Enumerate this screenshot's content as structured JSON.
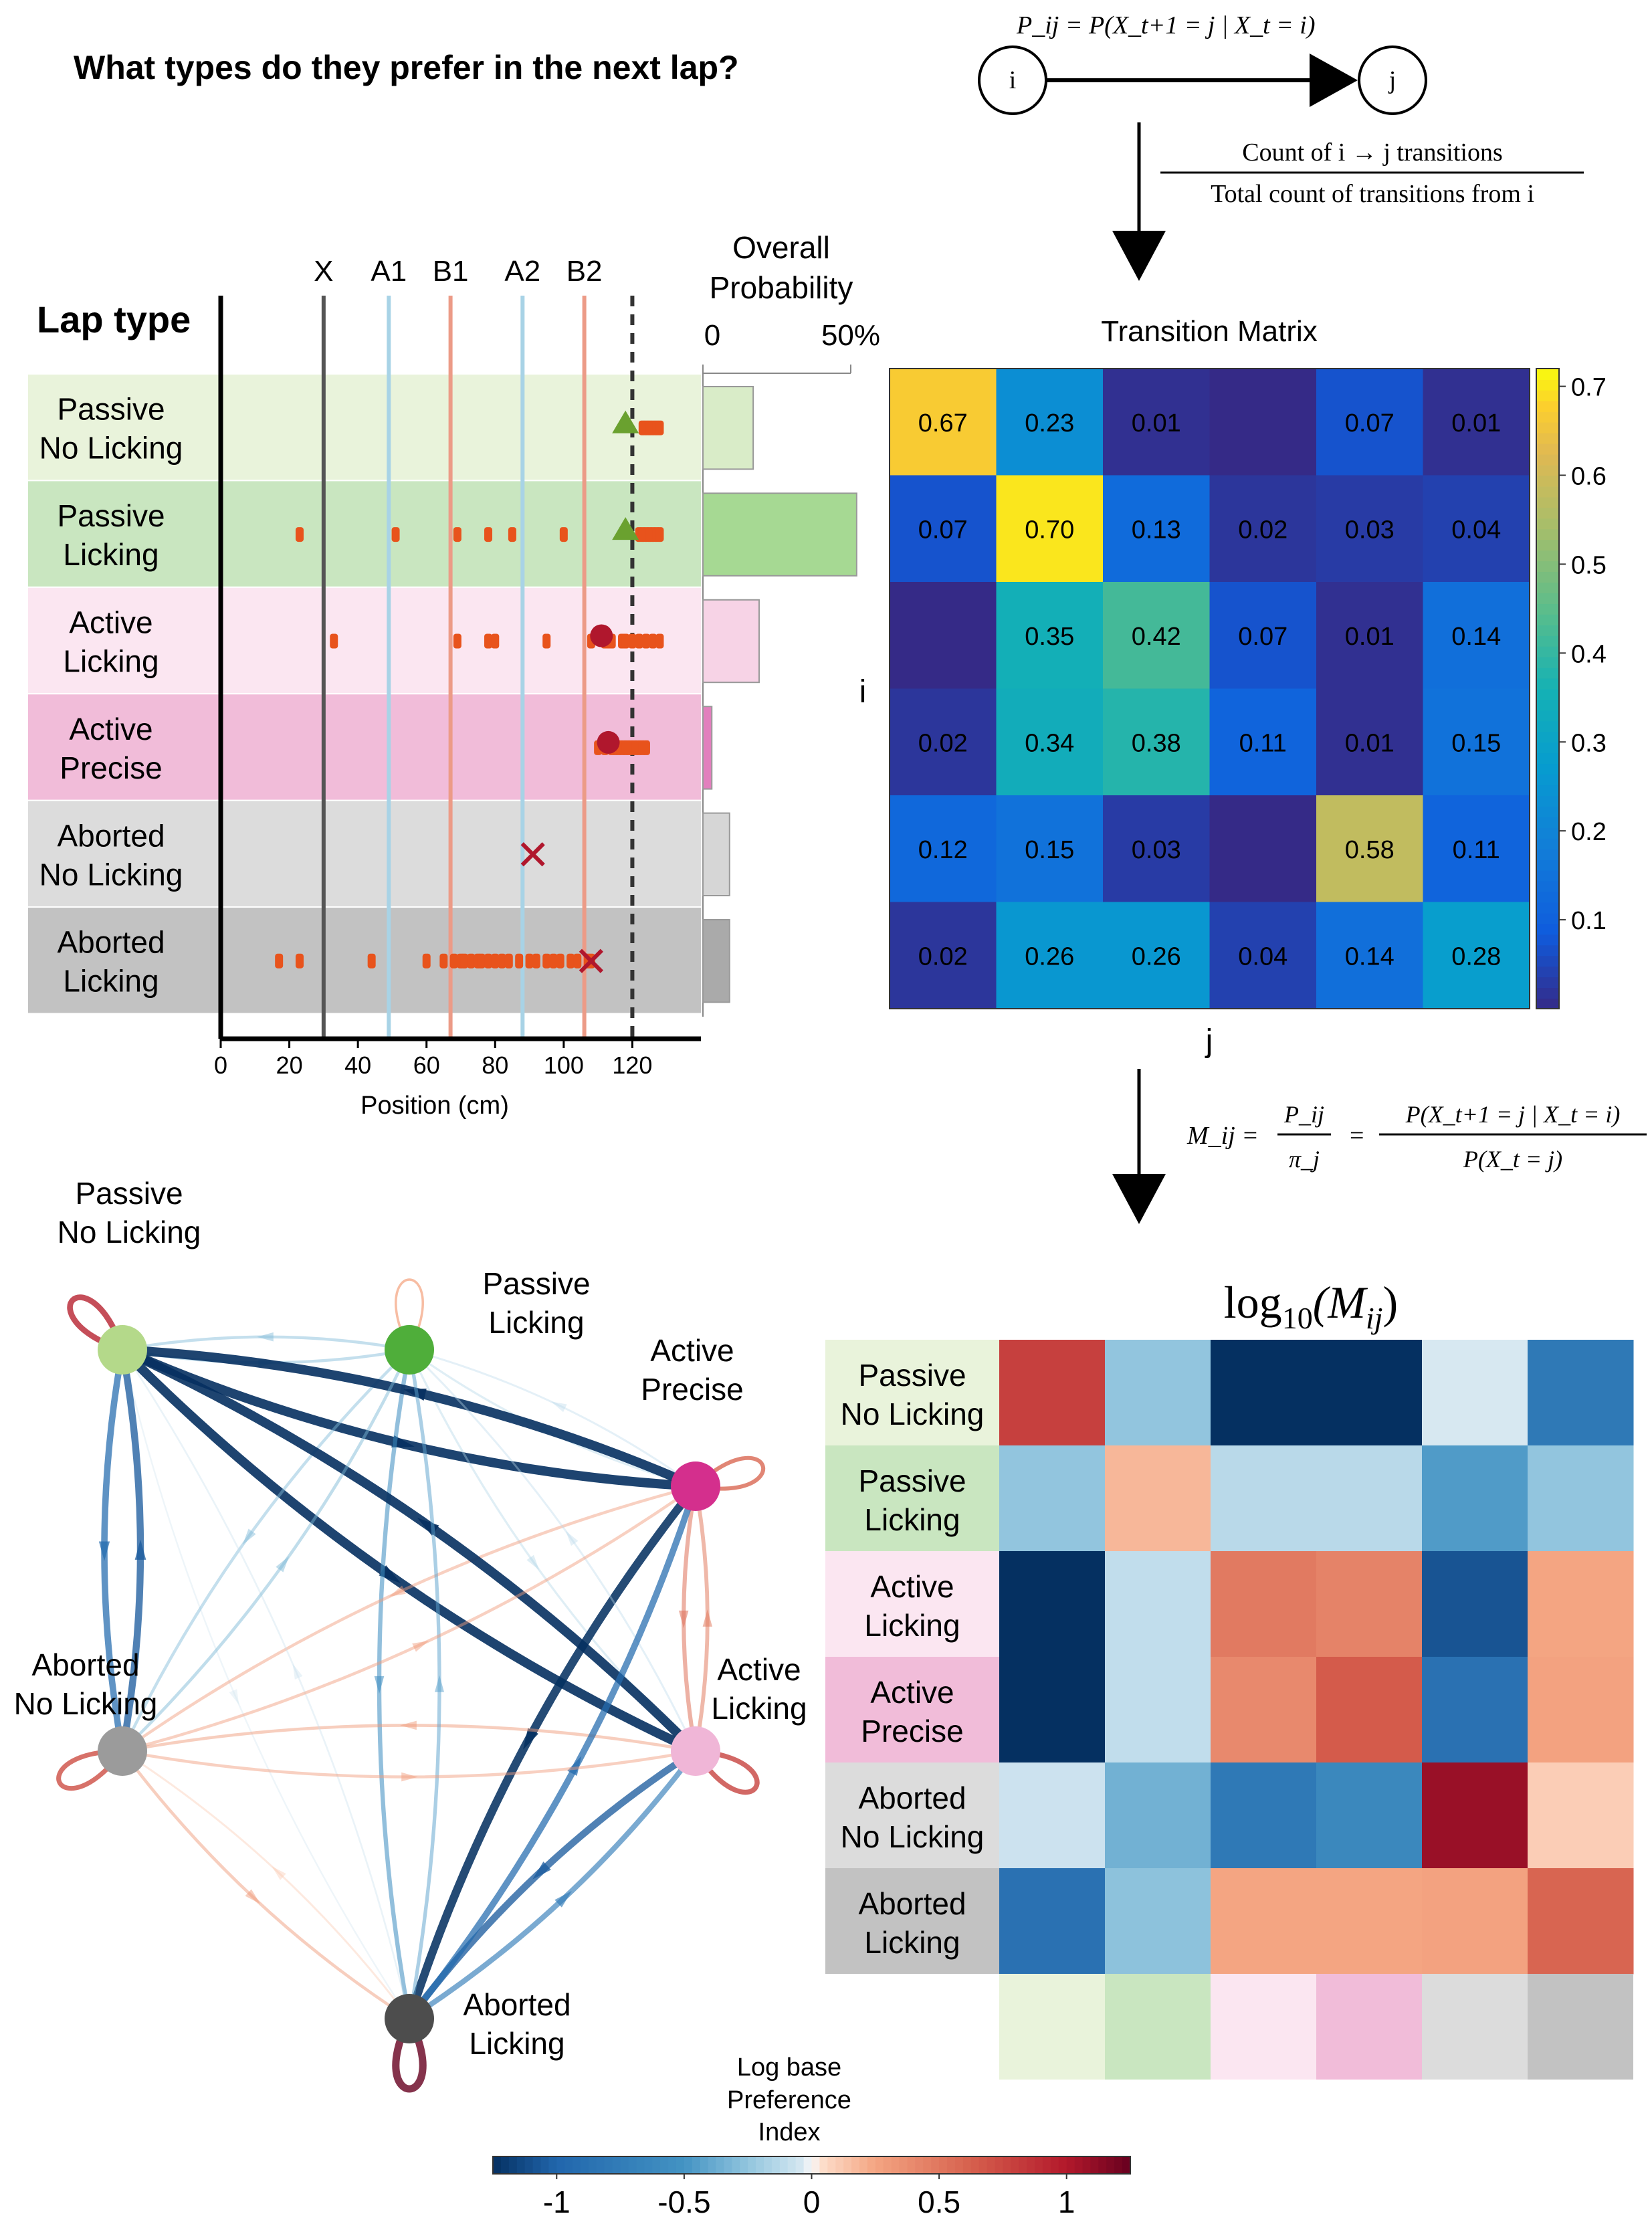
{
  "title": "What types do they prefer in the next lap?",
  "lap_types": [
    {
      "line1": "Passive",
      "line2": "No Licking",
      "color": "#e9f3db",
      "bar": "#d9ecc8",
      "mark": "triangle"
    },
    {
      "line1": "Passive",
      "line2": "Licking",
      "color": "#c9e6c0",
      "bar": "#a6d993",
      "mark": "triangle"
    },
    {
      "line1": "Active",
      "line2": "Licking",
      "color": "#fbe6f1",
      "bar": "#f7d3e6",
      "mark": "circle"
    },
    {
      "line1": "Active",
      "line2": "Precise",
      "color": "#f1bcd9",
      "bar": "#e27fbd",
      "mark": "circle"
    },
    {
      "line1": "Aborted",
      "line2": "No Licking",
      "color": "#dcdcdc",
      "bar": "#d6d6d6",
      "mark": "cross"
    },
    {
      "line1": "Aborted",
      "line2": "Licking",
      "color": "#c2c2c2",
      "bar": "#aaaaaa",
      "mark": "cross"
    }
  ],
  "transition": {
    "formula": "P_ij = P(X_t+1 = j | X_t = i)",
    "node_i": "i",
    "node_j": "j",
    "frac_num": "Count of i → j transitions",
    "frac_den": "Total count of transitions from i"
  },
  "m_formula": {
    "lhs": "M_ij =",
    "frac1_num": "P_ij",
    "frac1_den": "π_j",
    "eq": "=",
    "frac2_num": "P(X_t+1 = j | X_t = i)",
    "frac2_den": "P(X_t = j)"
  },
  "chart_data": [
    {
      "type": "scatter",
      "ylabel": "Lap type",
      "xlabel": "Position (cm)",
      "xlim": [
        0,
        140
      ],
      "xticks": [
        "0",
        "20",
        "40",
        "60",
        "80",
        "100",
        "120"
      ],
      "zones": [
        {
          "label": "X",
          "pos": 30,
          "color": "#555555"
        },
        {
          "label": "A1",
          "pos": 49,
          "color": "#a8d3e6"
        },
        {
          "label": "B1",
          "pos": 67,
          "color": "#ec9b87"
        },
        {
          "label": "A2",
          "pos": 88,
          "color": "#a8d3e6"
        },
        {
          "label": "B2",
          "pos": 106,
          "color": "#ec9b87"
        }
      ],
      "reward_pos": 120,
      "licks": [
        [
          123,
          124,
          125,
          126,
          127,
          128
        ],
        [
          23,
          51,
          69,
          78,
          85,
          100,
          122,
          123,
          124,
          125,
          126,
          127,
          128
        ],
        [
          33,
          69,
          78,
          80,
          95,
          108,
          112,
          113,
          114,
          117,
          118,
          120,
          122,
          124,
          126,
          128
        ],
        [
          110,
          112,
          114,
          115,
          116,
          117,
          118,
          119,
          120,
          121,
          122,
          123,
          124
        ],
        [],
        [
          17,
          23,
          44,
          60,
          65,
          68,
          70,
          71,
          73,
          75,
          76,
          78,
          80,
          82,
          84,
          87,
          90,
          92,
          95,
          97,
          99,
          102,
          104,
          107,
          108
        ]
      ],
      "outcomes": [
        {
          "row": 0,
          "mark": "triangle",
          "pos": 118
        },
        {
          "row": 1,
          "mark": "triangle",
          "pos": 118
        },
        {
          "row": 2,
          "mark": "circle",
          "pos": 111
        },
        {
          "row": 3,
          "mark": "circle",
          "pos": 113
        },
        {
          "row": 4,
          "mark": "cross",
          "pos": 91
        },
        {
          "row": 5,
          "mark": "cross",
          "pos": 108
        }
      ]
    },
    {
      "type": "bar",
      "title_line1": "Overall",
      "title_line2": "Probability",
      "tick_min": "0",
      "tick_max": "50%",
      "xlim": [
        0,
        0.5
      ],
      "values": [
        0.17,
        0.52,
        0.19,
        0.03,
        0.09,
        0.09
      ]
    },
    {
      "type": "heatmap",
      "title": "Transition Matrix",
      "xlabel": "j",
      "ylabel": "i",
      "values": [
        [
          0.67,
          0.23,
          0.01,
          0.0,
          0.07,
          0.01
        ],
        [
          0.07,
          0.7,
          0.13,
          0.02,
          0.03,
          0.04
        ],
        [
          0.0,
          0.35,
          0.42,
          0.07,
          0.01,
          0.14
        ],
        [
          0.02,
          0.34,
          0.38,
          0.11,
          0.01,
          0.15
        ],
        [
          0.12,
          0.15,
          0.03,
          0.0,
          0.58,
          0.11
        ],
        [
          0.02,
          0.26,
          0.26,
          0.04,
          0.14,
          0.28
        ]
      ],
      "labels": [
        [
          "0.67",
          "0.23",
          "0.01",
          "",
          "0.07",
          "0.01"
        ],
        [
          "0.07",
          "0.70",
          "0.13",
          "0.02",
          "0.03",
          "0.04"
        ],
        [
          "",
          "0.35",
          "0.42",
          "0.07",
          "0.01",
          "0.14"
        ],
        [
          "0.02",
          "0.34",
          "0.38",
          "0.11",
          "0.01",
          "0.15"
        ],
        [
          "0.12",
          "0.15",
          "0.03",
          "",
          "0.58",
          "0.11"
        ],
        [
          "0.02",
          "0.26",
          "0.26",
          "0.04",
          "0.14",
          "0.28"
        ]
      ],
      "colorbar": {
        "range": [
          0.0,
          0.72
        ],
        "ticks": [
          "0.1",
          "0.2",
          "0.3",
          "0.4",
          "0.5",
          "0.6",
          "0.7"
        ],
        "tick_values": [
          0.1,
          0.2,
          0.3,
          0.4,
          0.5,
          0.6,
          0.7
        ]
      }
    },
    {
      "type": "heatmap",
      "title_base": "log",
      "title_sub": "10",
      "title_arg": "(M",
      "title_arg_sub": "ij",
      "title_close": ")",
      "values": [
        [
          0.95,
          -0.3,
          -1.5,
          -1.5,
          -0.05,
          -0.95
        ],
        [
          -0.3,
          0.22,
          -0.15,
          -0.15,
          -0.55,
          -0.3
        ],
        [
          -1.5,
          -0.12,
          0.58,
          0.52,
          -1.3,
          0.3
        ],
        [
          -1.5,
          -0.12,
          0.48,
          0.78,
          -1.05,
          0.32
        ],
        [
          -0.08,
          -0.42,
          -0.95,
          -0.75,
          1.3,
          0.12
        ],
        [
          -1.05,
          -0.32,
          0.3,
          0.3,
          0.32,
          0.72
        ]
      ]
    },
    {
      "type": "network",
      "nodes": [
        {
          "line1": "Passive",
          "line2": "No Licking",
          "color": "#b4d98a"
        },
        {
          "line1": "Passive",
          "line2": "Licking",
          "color": "#4fae3a"
        },
        {
          "line1": "Active",
          "line2": "Precise",
          "color": "#d42f8d"
        },
        {
          "line1": "Active",
          "line2": "Licking",
          "color": "#f0b6d7"
        },
        {
          "line1": "Aborted",
          "line2": "Licking",
          "color": "#4d4d4d"
        },
        {
          "line1": "Aborted",
          "line2": "No Licking",
          "color": "#9b9b9b"
        }
      ],
      "colorbar": {
        "title_line1": "Log base",
        "title_line2": "Preference",
        "title_line3": "Index",
        "range": [
          -1.25,
          1.25
        ],
        "ticks": [
          "-1",
          "-0.5",
          "0",
          "0.5",
          "1"
        ],
        "tick_values": [
          -1,
          -0.5,
          0,
          0.5,
          1
        ]
      }
    }
  ]
}
